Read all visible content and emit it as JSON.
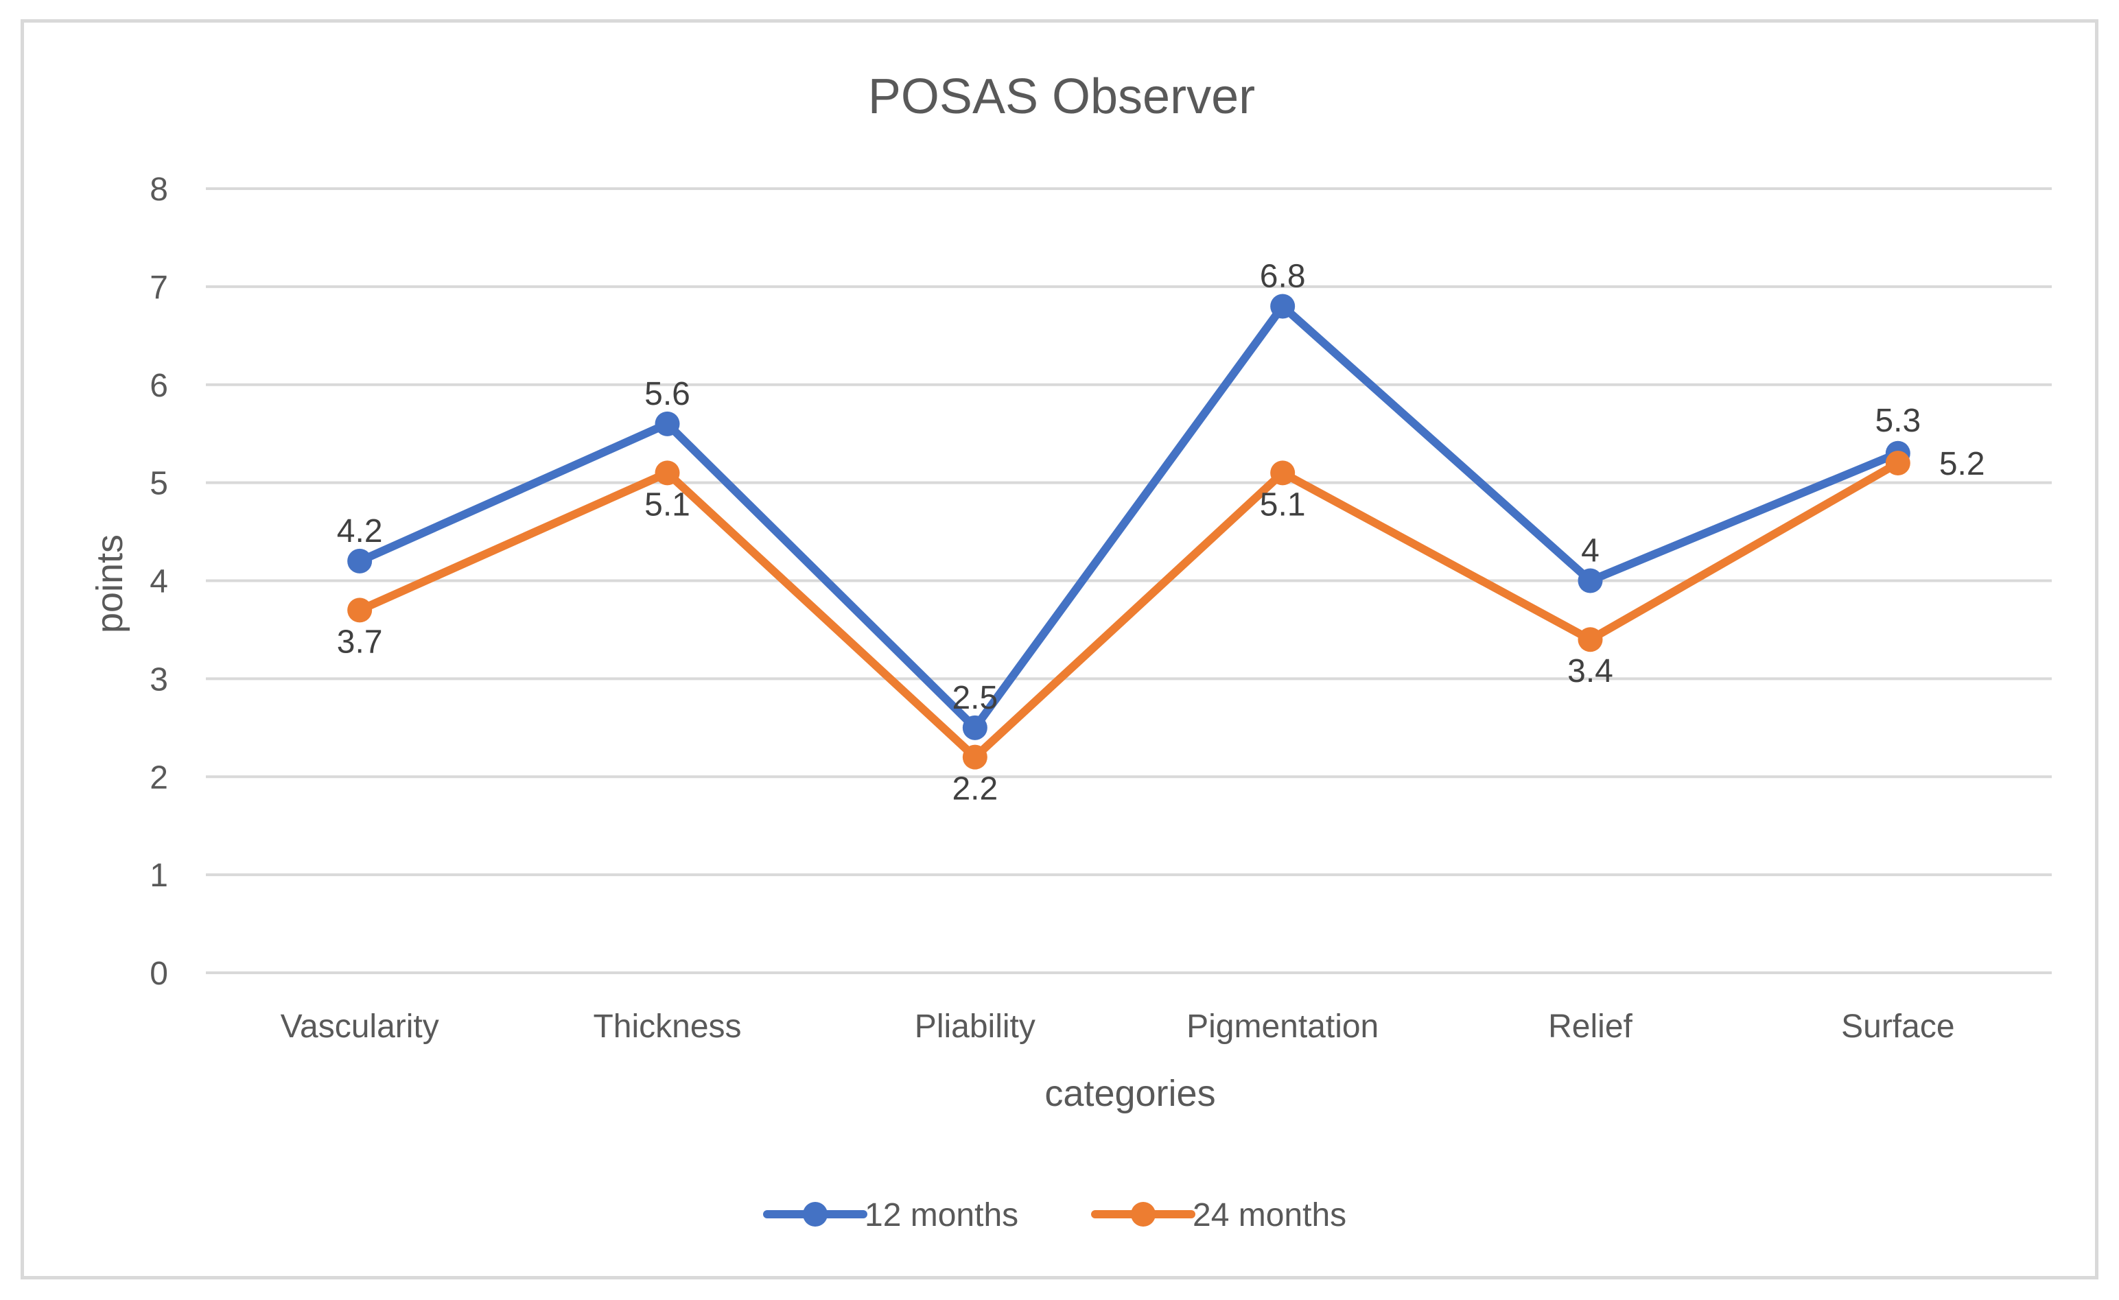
{
  "chart_data": {
    "type": "line",
    "title": "POSAS Observer",
    "xlabel": "categories",
    "ylabel": "points",
    "categories": [
      "Vascularity",
      "Thickness",
      "Pliability",
      "Pigmentation",
      "Relief",
      "Surface"
    ],
    "series": [
      {
        "name": "12 months",
        "color": "#4472c4",
        "values": [
          4.2,
          5.6,
          2.5,
          6.8,
          4,
          5.3
        ]
      },
      {
        "name": "24 months",
        "color": "#ed7d31",
        "values": [
          3.7,
          5.1,
          2.2,
          5.1,
          3.4,
          5.2
        ]
      }
    ],
    "ylim": [
      0,
      8
    ],
    "yticks": [
      0,
      1,
      2,
      3,
      4,
      5,
      6,
      7,
      8
    ],
    "grid": true,
    "legend": "bottom"
  }
}
